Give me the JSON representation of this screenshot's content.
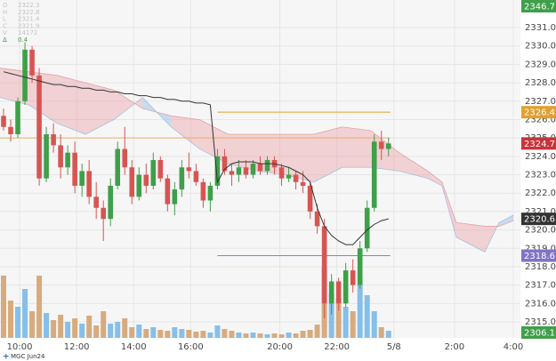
{
  "chart_data": {
    "type": "candlestick",
    "symbol": "MGC Jun24",
    "legend": [
      {
        "label": "O",
        "value": 2322.3
      },
      {
        "label": "H",
        "value": 2322.8
      },
      {
        "label": "L",
        "value": 2321.4
      },
      {
        "label": "C",
        "value": 2321.9
      },
      {
        "label": "V",
        "value": 14172
      },
      {
        "label": "Δ",
        "value": 0.4
      }
    ],
    "xlim": [
      0,
      73
    ],
    "xticks": [
      {
        "value": 2.75,
        "label": "10:00"
      },
      {
        "value": 10.75,
        "label": "12:00"
      },
      {
        "value": 18.75,
        "label": "14:00"
      },
      {
        "value": 26.75,
        "label": "16:00"
      },
      {
        "value": 39.25,
        "label": "20:00"
      },
      {
        "value": 47.25,
        "label": "22:00"
      },
      {
        "value": 55.25,
        "label": "5/8"
      },
      {
        "value": 63.75,
        "label": "2:00"
      },
      {
        "value": 72,
        "label": "4:00"
      }
    ],
    "ylim": [
      2314.13,
      2332.5
    ],
    "yticks": [
      {
        "value": 2315,
        "label": "2315.0"
      },
      {
        "value": 2316,
        "label": "2316.0"
      },
      {
        "value": 2317,
        "label": "2317.0"
      },
      {
        "value": 2318,
        "label": "2318.0"
      },
      {
        "value": 2319,
        "label": "2319.0"
      },
      {
        "value": 2320,
        "label": "2320.0"
      },
      {
        "value": 2321,
        "label": "2321.0"
      },
      {
        "value": 2322,
        "label": "2322.0"
      },
      {
        "value": 2323,
        "label": "2323.0"
      },
      {
        "value": 2324,
        "label": "2324.0"
      },
      {
        "value": 2325,
        "label": "2325.0"
      },
      {
        "value": 2326,
        "label": "2326.0"
      },
      {
        "value": 2327,
        "label": "2327.0"
      },
      {
        "value": 2328,
        "label": "2328.0"
      },
      {
        "value": 2329,
        "label": "2329.0"
      },
      {
        "value": 2330,
        "label": "2330.0"
      },
      {
        "value": 2331,
        "label": "2331.0"
      }
    ],
    "grid": true,
    "up_color": "#3f9f4a",
    "down_color": "#d65552",
    "candles": [
      [
        2326.2,
        2326.6,
        2325.4,
        2325.6
      ],
      [
        2325.6,
        2326.0,
        2324.8,
        2325.2
      ],
      [
        2325.2,
        2327.2,
        2325.0,
        2327.0
      ],
      [
        2327.0,
        2330.2,
        2326.8,
        2329.8
      ],
      [
        2329.8,
        2330.0,
        2328.0,
        2328.4
      ],
      [
        2328.4,
        2328.8,
        2322.4,
        2322.8
      ],
      [
        2322.8,
        2325.6,
        2322.6,
        2325.2
      ],
      [
        2325.2,
        2325.8,
        2324.2,
        2324.6
      ],
      [
        2324.6,
        2325.2,
        2322.8,
        2323.4
      ],
      [
        2323.4,
        2324.6,
        2323.0,
        2324.2
      ],
      [
        2324.2,
        2324.8,
        2322.0,
        2322.4
      ],
      [
        2322.4,
        2323.6,
        2321.8,
        2323.2
      ],
      [
        2323.2,
        2323.8,
        2321.4,
        2321.8
      ],
      [
        2321.8,
        2322.6,
        2320.6,
        2321.2
      ],
      [
        2321.2,
        2321.6,
        2319.4,
        2320.6
      ],
      [
        2320.6,
        2322.8,
        2320.2,
        2322.4
      ],
      [
        2322.4,
        2324.8,
        2322.2,
        2324.4
      ],
      [
        2324.4,
        2325.6,
        2323.0,
        2323.4
      ],
      [
        2323.4,
        2323.8,
        2321.4,
        2321.8
      ],
      [
        2321.8,
        2323.4,
        2321.6,
        2323.0
      ],
      [
        2323.0,
        2323.6,
        2322.0,
        2322.4
      ],
      [
        2322.4,
        2324.2,
        2322.2,
        2323.8
      ],
      [
        2323.8,
        2324.0,
        2322.6,
        2322.8
      ],
      [
        2322.8,
        2323.0,
        2321.0,
        2321.4
      ],
      [
        2321.4,
        2322.6,
        2320.8,
        2322.2
      ],
      [
        2322.2,
        2323.8,
        2321.8,
        2323.4
      ],
      [
        2323.4,
        2324.2,
        2322.8,
        2323.2
      ],
      [
        2323.2,
        2323.6,
        2322.4,
        2322.6
      ],
      [
        2322.6,
        2322.8,
        2321.2,
        2321.6
      ],
      [
        2321.6,
        2322.6,
        2321.0,
        2322.4
      ],
      [
        2322.4,
        2324.4,
        2322.2,
        2324.0
      ],
      [
        2324.0,
        2324.4,
        2323.0,
        2323.2
      ],
      [
        2323.2,
        2323.6,
        2322.4,
        2323.0
      ],
      [
        2323.0,
        2323.8,
        2322.6,
        2323.4
      ],
      [
        2323.4,
        2323.8,
        2322.8,
        2323.0
      ],
      [
        2323.0,
        2323.8,
        2322.8,
        2323.6
      ],
      [
        2323.6,
        2324.0,
        2323.0,
        2323.2
      ],
      [
        2323.2,
        2324.0,
        2323.0,
        2323.8
      ],
      [
        2323.8,
        2324.0,
        2323.0,
        2323.4
      ],
      [
        2323.4,
        2323.6,
        2322.4,
        2322.8
      ],
      [
        2322.8,
        2323.4,
        2322.6,
        2323.0
      ],
      [
        2323.0,
        2323.2,
        2322.2,
        2322.6
      ],
      [
        2322.6,
        2323.2,
        2322.0,
        2322.4
      ],
      [
        2322.4,
        2322.6,
        2320.6,
        2321.0
      ],
      [
        2321.0,
        2321.4,
        2319.8,
        2320.2
      ],
      [
        2320.2,
        2320.6,
        2315.2,
        2316.0
      ],
      [
        2316.0,
        2317.6,
        2315.4,
        2317.2
      ],
      [
        2317.2,
        2317.4,
        2315.6,
        2316.0
      ],
      [
        2316.0,
        2318.2,
        2315.8,
        2317.8
      ],
      [
        2317.8,
        2318.4,
        2316.6,
        2317.0
      ],
      [
        2317.0,
        2319.4,
        2316.8,
        2319.0
      ],
      [
        2319.0,
        2321.6,
        2318.8,
        2321.2
      ],
      [
        2321.2,
        2325.2,
        2321.0,
        2324.8
      ],
      [
        2324.8,
        2325.4,
        2323.8,
        2324.4
      ],
      [
        2324.4,
        2325.0,
        2324.0,
        2324.7
      ]
    ],
    "volume": [
      700,
      420,
      350,
      550,
      300,
      700,
      280,
      200,
      260,
      180,
      220,
      160,
      250,
      140,
      300,
      160,
      180,
      220,
      120,
      150,
      100,
      120,
      90,
      80,
      120,
      100,
      90,
      70,
      80,
      60,
      140,
      100,
      80,
      60,
      50,
      60,
      50,
      40,
      50,
      40,
      60,
      50,
      80,
      90,
      150,
      800,
      500,
      450,
      350,
      300,
      600,
      480,
      300,
      120,
      80
    ],
    "volume_lim": [
      0,
      1000
    ],
    "volume_up_color": "#86bfe9",
    "volume_down_color": "#d7ab7e",
    "line_color": "#333333",
    "line_values": [
      2328.6,
      2328.5,
      2328.4,
      2328.3,
      2328.2,
      2328.1,
      2328.0,
      2327.9,
      2327.9,
      2327.8,
      2327.8,
      2327.7,
      2327.7,
      2327.6,
      2327.6,
      2327.5,
      2327.5,
      2327.4,
      2327.4,
      2327.3,
      2327.3,
      2327.2,
      2327.2,
      2327.1,
      2327.1,
      2327.0,
      2327.0,
      2326.9,
      2326.9,
      2326.8,
      2322.6,
      2323.3,
      2323.6,
      2323.7,
      2323.7,
      2323.7,
      2323.6,
      2323.6,
      2323.6,
      2323.5,
      2323.4,
      2323.2,
      2323.0,
      2322.6,
      2321.2,
      2320.2,
      2319.7,
      2319.4,
      2319.2,
      2319.2,
      2319.6,
      2320.0,
      2320.3,
      2320.5,
      2320.6
    ],
    "cloud": {
      "x": [
        0,
        4,
        8,
        12,
        16,
        20,
        24,
        28,
        32,
        36,
        40,
        44,
        48,
        52,
        56,
        60,
        62,
        64,
        68,
        70,
        72
      ],
      "span_a": [
        2327.2,
        2326.8,
        2325.8,
        2325.2,
        2326.0,
        2327.2,
        2325.6,
        2324.4,
        2323.6,
        2323.2,
        2323.0,
        2322.6,
        2323.4,
        2323.4,
        2323.2,
        2322.8,
        2322.4,
        2319.6,
        2318.8,
        2320.4,
        2320.8
      ],
      "span_b": [
        2328.8,
        2328.6,
        2328.4,
        2328.0,
        2327.6,
        2326.6,
        2326.2,
        2326.0,
        2325.2,
        2325.2,
        2325.2,
        2325.2,
        2325.6,
        2325.4,
        2324.2,
        2323.2,
        2322.6,
        2320.4,
        2320.2,
        2320.2,
        2320.5
      ],
      "bull_color": "rgba(120,170,220,0.35)",
      "bear_color": "rgba(232,140,150,0.35)"
    },
    "levels": [
      {
        "value": 2326.4,
        "from": 30.5,
        "to": 54.75,
        "color": "#e0a030"
      },
      {
        "value": 2325.0,
        "from": 0,
        "to": 54.75,
        "color": "#e8b070"
      },
      {
        "value": 2318.6,
        "from": 30.5,
        "to": 54.75,
        "color": "#8a80c8"
      }
    ],
    "price_labels": [
      {
        "value": 2346.7,
        "color": "#3f9f4a",
        "pin": "top"
      },
      {
        "value": 2326.4,
        "color": "#e0a030"
      },
      {
        "value": 2324.7,
        "color": "#c8333a"
      },
      {
        "value": 2320.6,
        "color": "#333333"
      },
      {
        "value": 2318.6,
        "color": "#7f74c4"
      },
      {
        "value": 2306.1,
        "color": "#3f9f4a",
        "pin": "bottom"
      }
    ]
  }
}
